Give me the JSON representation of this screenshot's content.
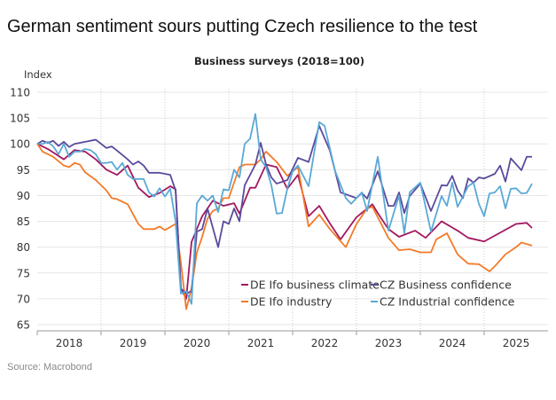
{
  "page": {
    "title": "German sentiment sours putting Czech resilience to the test",
    "source": "Source: Macrobond"
  },
  "chart_data": {
    "type": "line",
    "title": "Business surveys (2018=100)",
    "ylabel": "Index",
    "ylim": [
      65,
      110
    ],
    "yticks": [
      110,
      105,
      100,
      95,
      90,
      85,
      80,
      75,
      70,
      65
    ],
    "xlim": [
      "2018-01",
      "2025-12"
    ],
    "xticks": [
      "2018",
      "2019",
      "2020",
      "2021",
      "2022",
      "2023",
      "2024",
      "2025"
    ],
    "grid": true,
    "legend_position": "bottom-center inside",
    "series": [
      {
        "name": "DE Ifo business climate",
        "color": "#A3185F",
        "points": [
          [
            "2018-01",
            100
          ],
          [
            "2018-03",
            99
          ],
          [
            "2018-06",
            97
          ],
          [
            "2018-08",
            98.8
          ],
          [
            "2018-10",
            98.5
          ],
          [
            "2018-12",
            97
          ],
          [
            "2019-02",
            95
          ],
          [
            "2019-04",
            94
          ],
          [
            "2019-06",
            95.8
          ],
          [
            "2019-08",
            91.5
          ],
          [
            "2019-10",
            89.7
          ],
          [
            "2019-12",
            90.5
          ],
          [
            "2020-02",
            91.8
          ],
          [
            "2020-03",
            91.2
          ],
          [
            "2020-04",
            72
          ],
          [
            "2020-05",
            70
          ],
          [
            "2020-06",
            81
          ],
          [
            "2020-08",
            86
          ],
          [
            "2020-10",
            89
          ],
          [
            "2020-12",
            88
          ],
          [
            "2021-02",
            88.5
          ],
          [
            "2021-03",
            86.5
          ],
          [
            "2021-05",
            91.5
          ],
          [
            "2021-06",
            91.5
          ],
          [
            "2021-08",
            96
          ],
          [
            "2021-10",
            95.5
          ],
          [
            "2021-12",
            91.3
          ],
          [
            "2022-02",
            94
          ],
          [
            "2022-04",
            86
          ],
          [
            "2022-06",
            88
          ],
          [
            "2022-08",
            84.6
          ],
          [
            "2022-10",
            81.5
          ],
          [
            "2023-01",
            85.8
          ],
          [
            "2023-04",
            88.3
          ],
          [
            "2023-05",
            86.6
          ],
          [
            "2023-07",
            83.5
          ],
          [
            "2023-09",
            82
          ],
          [
            "2023-12",
            83.2
          ],
          [
            "2024-02",
            81.8
          ],
          [
            "2024-05",
            85
          ],
          [
            "2024-08",
            83.2
          ],
          [
            "2024-10",
            81.8
          ],
          [
            "2025-01",
            81.1
          ],
          [
            "2025-04",
            82.8
          ],
          [
            "2025-07",
            84.5
          ],
          [
            "2025-09",
            84.7
          ],
          [
            "2025-10",
            83.7
          ]
        ]
      },
      {
        "name": "DE Ifo industry",
        "color": "#F47A28",
        "points": [
          [
            "2018-01",
            100
          ],
          [
            "2018-02",
            98.5
          ],
          [
            "2018-04",
            97.5
          ],
          [
            "2018-06",
            95.8
          ],
          [
            "2018-07",
            95.5
          ],
          [
            "2018-08",
            96.3
          ],
          [
            "2018-09",
            96
          ],
          [
            "2018-10",
            94.5
          ],
          [
            "2018-12",
            93
          ],
          [
            "2019-02",
            91
          ],
          [
            "2019-03",
            89.5
          ],
          [
            "2019-04",
            89.3
          ],
          [
            "2019-06",
            88.3
          ],
          [
            "2019-08",
            84.5
          ],
          [
            "2019-09",
            83.5
          ],
          [
            "2019-11",
            83.5
          ],
          [
            "2019-12",
            84
          ],
          [
            "2020-01",
            83.3
          ],
          [
            "2020-03",
            84.5
          ],
          [
            "2020-04",
            77
          ],
          [
            "2020-05",
            68
          ],
          [
            "2020-06",
            72
          ],
          [
            "2020-07",
            79
          ],
          [
            "2020-08",
            82
          ],
          [
            "2020-09",
            85.5
          ],
          [
            "2020-10",
            87
          ],
          [
            "2020-11",
            87.5
          ],
          [
            "2020-12",
            89.5
          ],
          [
            "2021-01",
            89.5
          ],
          [
            "2021-02",
            92.5
          ],
          [
            "2021-03",
            95.5
          ],
          [
            "2021-04",
            96
          ],
          [
            "2021-06",
            96
          ],
          [
            "2021-07",
            97
          ],
          [
            "2021-08",
            98.5
          ],
          [
            "2021-10",
            96.5
          ],
          [
            "2021-12",
            93.8
          ],
          [
            "2022-02",
            95.5
          ],
          [
            "2022-04",
            84
          ],
          [
            "2022-06",
            86.3
          ],
          [
            "2022-08",
            83.5
          ],
          [
            "2022-11",
            80
          ],
          [
            "2023-01",
            84.5
          ],
          [
            "2023-03",
            87.5
          ],
          [
            "2023-04",
            87.8
          ],
          [
            "2023-07",
            81.8
          ],
          [
            "2023-09",
            79.4
          ],
          [
            "2023-11",
            79.6
          ],
          [
            "2024-01",
            79
          ],
          [
            "2024-03",
            79
          ],
          [
            "2024-04",
            81.5
          ],
          [
            "2024-06",
            82.7
          ],
          [
            "2024-08",
            78.6
          ],
          [
            "2024-10",
            76.8
          ],
          [
            "2024-12",
            76.7
          ],
          [
            "2025-02",
            75.3
          ],
          [
            "2025-03",
            76.3
          ],
          [
            "2025-05",
            78.6
          ],
          [
            "2025-07",
            80
          ],
          [
            "2025-08",
            80.9
          ],
          [
            "2025-10",
            80.3
          ]
        ]
      },
      {
        "name": "CZ Business confidence",
        "color": "#5B4A9C",
        "points": [
          [
            "2018-01",
            100
          ],
          [
            "2018-02",
            100.6
          ],
          [
            "2018-03",
            100.2
          ],
          [
            "2018-04",
            100.6
          ],
          [
            "2018-05",
            99.6
          ],
          [
            "2018-06",
            100.4
          ],
          [
            "2018-07",
            99.4
          ],
          [
            "2018-08",
            100
          ],
          [
            "2018-10",
            100.4
          ],
          [
            "2018-12",
            100.8
          ],
          [
            "2019-01",
            100
          ],
          [
            "2019-02",
            99.2
          ],
          [
            "2019-03",
            99.5
          ],
          [
            "2019-04",
            98.7
          ],
          [
            "2019-06",
            97
          ],
          [
            "2019-07",
            96
          ],
          [
            "2019-08",
            96.6
          ],
          [
            "2019-09",
            95.8
          ],
          [
            "2019-10",
            94.4
          ],
          [
            "2019-12",
            94.4
          ],
          [
            "2020-02",
            94
          ],
          [
            "2020-03",
            91
          ],
          [
            "2020-04",
            72
          ],
          [
            "2020-05",
            71
          ],
          [
            "2020-06",
            71.5
          ],
          [
            "2020-07",
            83
          ],
          [
            "2020-08",
            83.5
          ],
          [
            "2020-09",
            87.5
          ],
          [
            "2020-11",
            80
          ],
          [
            "2020-12",
            85
          ],
          [
            "2021-01",
            84.5
          ],
          [
            "2021-02",
            87.5
          ],
          [
            "2021-03",
            85
          ],
          [
            "2021-04",
            92
          ],
          [
            "2021-06",
            96
          ],
          [
            "2021-07",
            100.2
          ],
          [
            "2021-08",
            96
          ],
          [
            "2021-09",
            93.5
          ],
          [
            "2021-10",
            92.3
          ],
          [
            "2021-12",
            93
          ],
          [
            "2022-02",
            97.3
          ],
          [
            "2022-04",
            96.5
          ],
          [
            "2022-06",
            103.5
          ],
          [
            "2022-08",
            98.7
          ],
          [
            "2022-10",
            90.6
          ],
          [
            "2023-01",
            89.5
          ],
          [
            "2023-02",
            90.5
          ],
          [
            "2023-03",
            89.4
          ],
          [
            "2023-05",
            94.7
          ],
          [
            "2023-07",
            88
          ],
          [
            "2023-08",
            88
          ],
          [
            "2023-09",
            90.6
          ],
          [
            "2023-10",
            86.6
          ],
          [
            "2023-11",
            89.9
          ],
          [
            "2024-01",
            92.3
          ],
          [
            "2024-03",
            87
          ],
          [
            "2024-05",
            92
          ],
          [
            "2024-06",
            91.9
          ],
          [
            "2024-07",
            93.8
          ],
          [
            "2024-08",
            91
          ],
          [
            "2024-09",
            89.5
          ],
          [
            "2024-10",
            93.3
          ],
          [
            "2024-11",
            92.5
          ],
          [
            "2024-12",
            93.5
          ],
          [
            "2025-01",
            93.3
          ],
          [
            "2025-03",
            94.2
          ],
          [
            "2025-04",
            95.8
          ],
          [
            "2025-05",
            92.7
          ],
          [
            "2025-06",
            97.2
          ],
          [
            "2025-08",
            94.9
          ],
          [
            "2025-09",
            97.5
          ],
          [
            "2025-10",
            97.5
          ]
        ]
      },
      {
        "name": "CZ Industrial confidence",
        "color": "#5AA9D6",
        "points": [
          [
            "2018-01",
            100
          ],
          [
            "2018-02",
            100
          ],
          [
            "2018-03",
            100.4
          ],
          [
            "2018-04",
            99.5
          ],
          [
            "2018-05",
            98
          ],
          [
            "2018-06",
            100
          ],
          [
            "2018-07",
            97.5
          ],
          [
            "2018-08",
            98.5
          ],
          [
            "2018-09",
            98.5
          ],
          [
            "2018-10",
            99
          ],
          [
            "2018-11",
            98.8
          ],
          [
            "2018-12",
            98
          ],
          [
            "2019-01",
            96.3
          ],
          [
            "2019-02",
            96.3
          ],
          [
            "2019-03",
            96.5
          ],
          [
            "2019-04",
            95
          ],
          [
            "2019-05",
            96.3
          ],
          [
            "2019-06",
            94
          ],
          [
            "2019-07",
            93.2
          ],
          [
            "2019-09",
            93.2
          ],
          [
            "2019-10",
            90.6
          ],
          [
            "2019-11",
            89.8
          ],
          [
            "2019-12",
            91.4
          ],
          [
            "2020-01",
            89.8
          ],
          [
            "2020-02",
            91.3
          ],
          [
            "2020-03",
            85
          ],
          [
            "2020-04",
            71
          ],
          [
            "2020-05",
            71.5
          ],
          [
            "2020-06",
            69
          ],
          [
            "2020-07",
            88.5
          ],
          [
            "2020-08",
            90
          ],
          [
            "2020-09",
            89
          ],
          [
            "2020-10",
            90
          ],
          [
            "2020-11",
            86.8
          ],
          [
            "2020-12",
            91.2
          ],
          [
            "2021-01",
            91
          ],
          [
            "2021-02",
            95
          ],
          [
            "2021-03",
            93.5
          ],
          [
            "2021-04",
            100
          ],
          [
            "2021-05",
            101
          ],
          [
            "2021-06",
            105.8
          ],
          [
            "2021-07",
            97
          ],
          [
            "2021-08",
            95.5
          ],
          [
            "2021-09",
            92
          ],
          [
            "2021-10",
            86.5
          ],
          [
            "2021-11",
            86.6
          ],
          [
            "2021-12",
            91.3
          ],
          [
            "2022-01",
            94.7
          ],
          [
            "2022-02",
            95.8
          ],
          [
            "2022-04",
            91.8
          ],
          [
            "2022-06",
            104.2
          ],
          [
            "2022-07",
            103.5
          ],
          [
            "2022-09",
            94.7
          ],
          [
            "2022-11",
            89.5
          ],
          [
            "2022-12",
            88.4
          ],
          [
            "2023-02",
            90.6
          ],
          [
            "2023-03",
            87
          ],
          [
            "2023-05",
            97.5
          ],
          [
            "2023-07",
            83.2
          ],
          [
            "2023-09",
            90
          ],
          [
            "2023-10",
            82.7
          ],
          [
            "2023-11",
            90.6
          ],
          [
            "2024-01",
            92.5
          ],
          [
            "2024-03",
            83
          ],
          [
            "2024-05",
            89.9
          ],
          [
            "2024-06",
            88
          ],
          [
            "2024-07",
            92.5
          ],
          [
            "2024-08",
            87.8
          ],
          [
            "2024-10",
            91.8
          ],
          [
            "2024-11",
            92.5
          ],
          [
            "2024-12",
            88.4
          ],
          [
            "2025-01",
            86
          ],
          [
            "2025-02",
            90.4
          ],
          [
            "2025-03",
            90.6
          ],
          [
            "2025-04",
            91.8
          ],
          [
            "2025-05",
            87.5
          ],
          [
            "2025-06",
            91.3
          ],
          [
            "2025-07",
            91.4
          ],
          [
            "2025-08",
            90.4
          ],
          [
            "2025-09",
            90.5
          ],
          [
            "2025-10",
            92.3
          ]
        ]
      }
    ]
  }
}
